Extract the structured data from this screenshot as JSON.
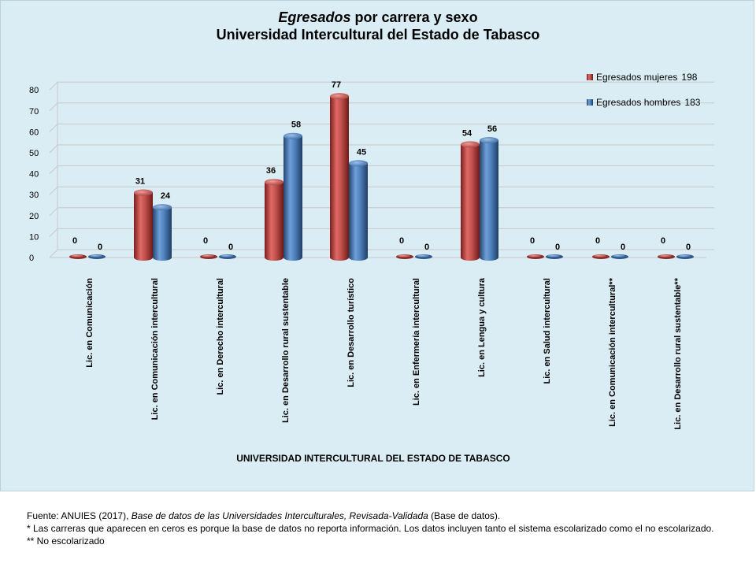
{
  "chart_data": {
    "type": "bar",
    "title_italic": "Egresados",
    "title_rest": " por carrera y sexo",
    "subtitle": "Universidad Intercultural del Estado de Tabasco",
    "xlabel": "UNIVERSIDAD INTERCULTURAL DEL ESTADO DE TABASCO",
    "ylabel": "",
    "ylim": [
      0,
      80
    ],
    "yticks": [
      0,
      10,
      20,
      30,
      40,
      50,
      60,
      70,
      80
    ],
    "grid": true,
    "legend_position": "top-right",
    "categories": [
      "Lic. en Comunicación",
      "Lic. en Comunicación intercultural",
      "Lic. en Derecho intercultural",
      "Lic. en Desarrollo rural sustentable",
      "Lic. en Desarrollo turístico",
      "Lic. en Enfermería intercultural",
      "Lic. en Lengua y cultura",
      "Lic. en Salud intercultural",
      "Lic. en Comunicación intercultural**",
      "Lic. en Desarrollo rural sustentable**"
    ],
    "series": [
      {
        "name": "Egresados mujeres",
        "total": "198",
        "color": "#c0504d",
        "values": [
          0,
          31,
          0,
          36,
          77,
          0,
          54,
          0,
          0,
          0
        ]
      },
      {
        "name": "Egresados hombres",
        "total": "183",
        "color": "#4f81bd",
        "values": [
          0,
          24,
          0,
          58,
          45,
          0,
          56,
          0,
          0,
          0
        ]
      }
    ]
  },
  "notes": {
    "source_prefix": "Fuente: ANUIES (2017), ",
    "source_italic": "Base de datos de las Universidades Interculturales, Revisada-Validada",
    "source_suffix": " (Base de datos).",
    "note1": "* Las carreras que aparecen en ceros es porque la base de datos no reporta información. Los datos incluyen tanto el sistema escolarizado como el no escolarizado.",
    "note2": "** No escolarizado"
  }
}
